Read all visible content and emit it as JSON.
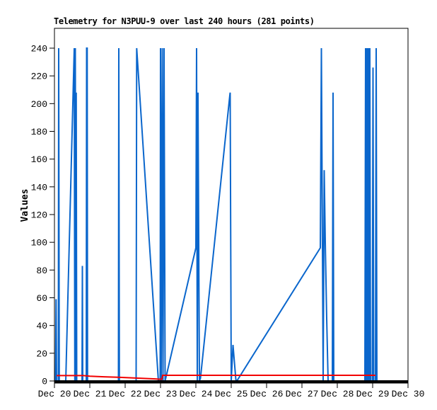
{
  "window": {
    "background": "#ffffff"
  },
  "chart_data": {
    "type": "line",
    "title": "Telemetry for N3PUU-9 over last 240 hours (281 points)",
    "ylabel": "Values",
    "xlabel": "",
    "grid": false,
    "legend": "none",
    "x_tick_labels": [
      "Dec 20",
      "Dec 21",
      "Dec 22",
      "Dec 23",
      "Dec 24",
      "Dec 25",
      "Dec 26",
      "Dec 27",
      "Dec 28",
      "Dec 29",
      "Dec 30"
    ],
    "y_ticks": [
      0,
      20,
      40,
      60,
      80,
      100,
      120,
      140,
      160,
      180,
      200,
      220,
      240
    ],
    "ylim": [
      0,
      255
    ],
    "xlim_days_from_dec20": [
      0,
      10
    ],
    "axis_color": "#000000",
    "series": [
      {
        "name": "telemetry-channel-blue",
        "color": "#0A66CC",
        "points_day_value": [
          [
            0.0,
            0
          ],
          [
            0.03,
            0
          ],
          [
            0.045,
            59
          ],
          [
            0.06,
            0
          ],
          [
            0.11,
            0
          ],
          [
            0.12,
            240
          ],
          [
            0.135,
            0
          ],
          [
            0.32,
            0
          ],
          [
            0.56,
            240
          ],
          [
            0.575,
            0
          ],
          [
            0.59,
            240
          ],
          [
            0.605,
            0
          ],
          [
            0.615,
            208
          ],
          [
            0.63,
            0
          ],
          [
            0.78,
            0
          ],
          [
            0.79,
            83
          ],
          [
            0.8,
            0
          ],
          [
            0.9,
            0
          ],
          [
            0.91,
            240
          ],
          [
            0.925,
            240
          ],
          [
            0.935,
            0
          ],
          [
            1.81,
            0
          ],
          [
            1.82,
            240
          ],
          [
            1.835,
            0
          ],
          [
            2.31,
            0
          ],
          [
            2.325,
            240
          ],
          [
            2.94,
            0
          ],
          [
            2.99,
            0
          ],
          [
            3.0,
            240
          ],
          [
            3.02,
            0
          ],
          [
            3.05,
            240
          ],
          [
            3.07,
            0
          ],
          [
            3.1,
            240
          ],
          [
            3.13,
            0
          ],
          [
            4.0,
            96
          ],
          [
            4.02,
            240
          ],
          [
            4.04,
            0
          ],
          [
            4.06,
            208
          ],
          [
            4.1,
            0
          ],
          [
            4.13,
            2
          ],
          [
            4.96,
            206
          ],
          [
            4.97,
            208
          ],
          [
            5.0,
            0
          ],
          [
            5.05,
            26
          ],
          [
            5.13,
            1
          ],
          [
            5.16,
            0
          ],
          [
            7.52,
            96
          ],
          [
            7.55,
            240
          ],
          [
            7.6,
            0
          ],
          [
            7.63,
            152
          ],
          [
            7.66,
            100
          ],
          [
            7.7,
            45
          ],
          [
            7.74,
            0
          ],
          [
            7.86,
            0
          ],
          [
            7.88,
            208
          ],
          [
            7.9,
            0
          ],
          [
            8.78,
            0
          ],
          [
            8.8,
            240
          ],
          [
            8.82,
            0
          ],
          [
            8.84,
            240
          ],
          [
            8.86,
            0
          ],
          [
            8.88,
            240
          ],
          [
            8.9,
            0
          ],
          [
            8.92,
            240
          ],
          [
            8.94,
            0
          ],
          [
            8.99,
            0
          ],
          [
            9.01,
            226
          ],
          [
            9.03,
            0
          ],
          [
            9.08,
            0
          ],
          [
            9.1,
            240
          ],
          [
            9.12,
            0
          ]
        ]
      },
      {
        "name": "telemetry-channel-red",
        "color": "#F20000",
        "points_day_value": [
          [
            0.06,
            3.9
          ],
          [
            0.82,
            3.9
          ],
          [
            1.0,
            3.4
          ],
          [
            1.4,
            3.0
          ],
          [
            1.8,
            2.7
          ],
          [
            2.3,
            2.1
          ],
          [
            2.86,
            1.5
          ],
          [
            2.96,
            1.3
          ],
          [
            3.04,
            1.3
          ],
          [
            3.06,
            4.1
          ],
          [
            9.08,
            4.1
          ]
        ]
      }
    ]
  }
}
